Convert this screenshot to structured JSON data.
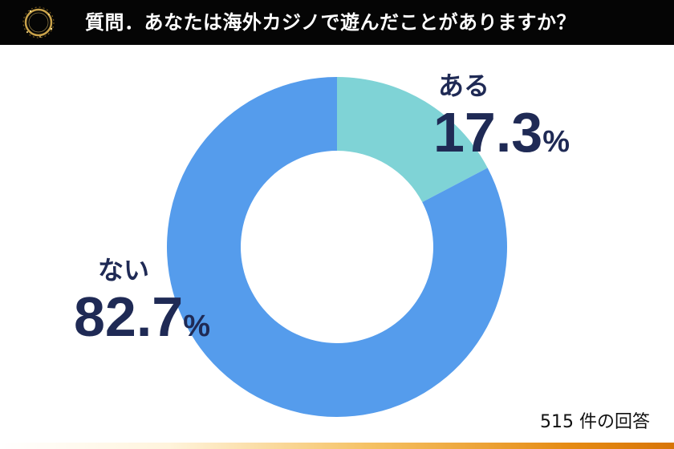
{
  "header": {
    "question": "質問．あなたは海外カジノで遊んだことがありますか？"
  },
  "colors": {
    "yes": "#7fd3d6",
    "no": "#559cec",
    "label_text": "#1f2a55",
    "header_bg": "#050505",
    "logo": "#c9a24a"
  },
  "icons": {
    "logo": "gold-ring-logo-icon"
  },
  "chart_data": {
    "type": "pie",
    "donut": true,
    "categories": [
      "ある",
      "ない"
    ],
    "values": [
      17.3,
      82.7
    ],
    "value_labels": [
      "17.3",
      "82.7"
    ],
    "unit": "%",
    "title": "質問．あなたは海外カジノで遊んだことがありますか？",
    "legend": "none",
    "note": "515 件の回答"
  },
  "footer": {
    "responses": "515 件の回答"
  }
}
